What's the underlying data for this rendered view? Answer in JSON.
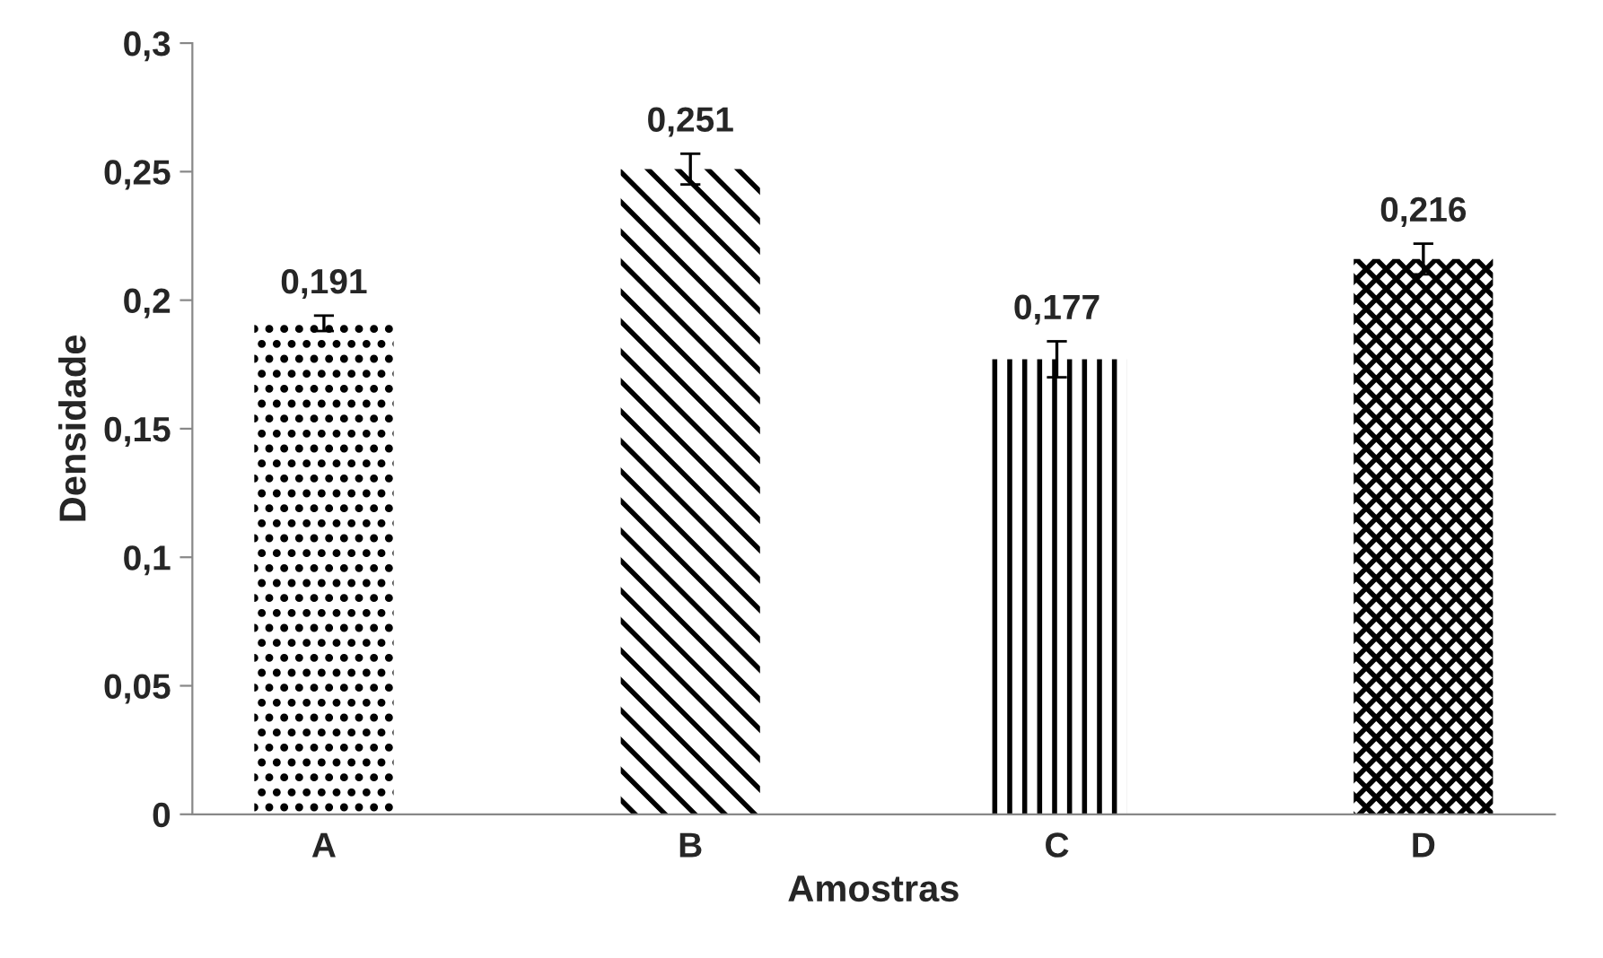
{
  "chart_data": {
    "type": "bar",
    "xlabel": "Amostras",
    "ylabel": "Densidade",
    "categories": [
      "A",
      "B",
      "C",
      "D"
    ],
    "values": [
      0.191,
      0.251,
      0.177,
      0.216
    ],
    "errors": [
      0.003,
      0.006,
      0.007,
      0.006
    ],
    "value_labels": [
      "0,191",
      "0,251",
      "0,177",
      "0,216"
    ],
    "colors": [
      "#000000",
      "#000000",
      "#000000",
      "#000000"
    ],
    "ylim": [
      0,
      0.3
    ],
    "yticks": [
      {
        "value": 0,
        "label": "0"
      },
      {
        "value": 0.05,
        "label": "0,05"
      },
      {
        "value": 0.1,
        "label": "0,1"
      },
      {
        "value": 0.15,
        "label": "0,15"
      },
      {
        "value": 0.2,
        "label": "0,2"
      },
      {
        "value": 0.25,
        "label": "0,25"
      },
      {
        "value": 0.3,
        "label": "0,3"
      }
    ],
    "grid": false
  }
}
